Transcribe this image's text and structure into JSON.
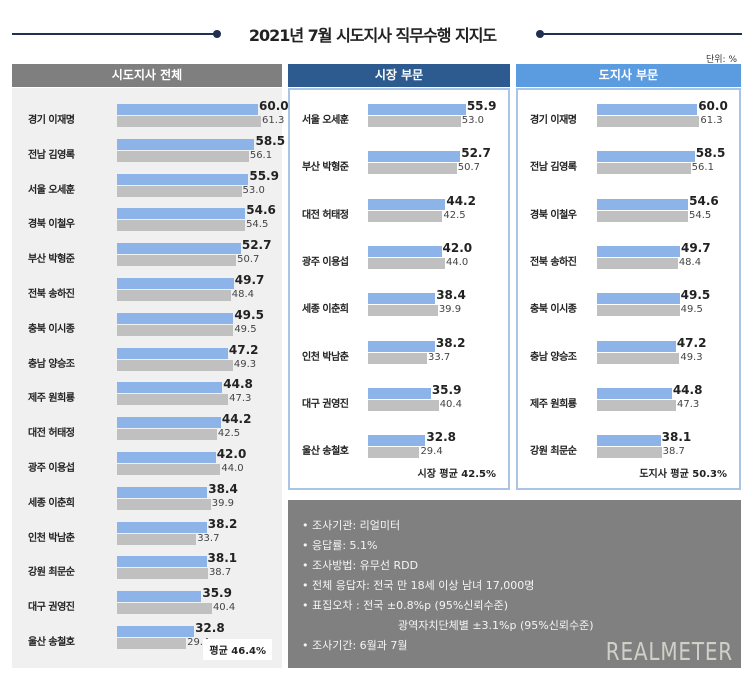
{
  "title": "2021년 7월 시도지사 직무수행 지지도",
  "unit": "단위: %",
  "colors": {
    "current": "#8db4e8",
    "previous": "#c0c0c0",
    "header_all": "#7f7f7f",
    "header_mayor": "#2e5b8f",
    "header_governor": "#5b9be0"
  },
  "chart_data": [
    {
      "type": "bar",
      "orientation": "horizontal",
      "title": "시도지사 전체",
      "categories": [
        "경기 이재명",
        "전남 김영록",
        "서울 오세훈",
        "경북 이철우",
        "부산 박형준",
        "전북 송하진",
        "충북 이시종",
        "충남 양승조",
        "제주 원희룡",
        "대전 허태정",
        "광주 이용섭",
        "세종 이춘희",
        "인천 박남춘",
        "강원 최문순",
        "대구 권영진",
        "울산 송철호"
      ],
      "series": [
        {
          "values": [
            60.0,
            58.5,
            55.9,
            54.6,
            52.7,
            49.7,
            49.5,
            47.2,
            44.8,
            44.2,
            42.0,
            38.4,
            38.2,
            38.1,
            35.9,
            32.8
          ]
        },
        {
          "values": [
            61.3,
            56.1,
            53.0,
            54.5,
            50.7,
            48.4,
            49.5,
            49.3,
            47.3,
            42.5,
            44.0,
            39.9,
            33.7,
            38.7,
            40.4,
            29.4
          ]
        }
      ],
      "average": "평균 46.4%",
      "grid": false
    },
    {
      "type": "bar",
      "orientation": "horizontal",
      "title": "시장 부문",
      "categories": [
        "서울 오세훈",
        "부산 박형준",
        "대전 허태정",
        "광주 이용섭",
        "세종 이춘희",
        "인천 박남춘",
        "대구 권영진",
        "울산 송철호"
      ],
      "series": [
        {
          "values": [
            55.9,
            52.7,
            44.2,
            42.0,
            38.4,
            38.2,
            35.9,
            32.8
          ]
        },
        {
          "values": [
            53.0,
            50.7,
            42.5,
            44.0,
            39.9,
            33.7,
            40.4,
            29.4
          ]
        }
      ],
      "average": "시장 평균 42.5%",
      "grid": false
    },
    {
      "type": "bar",
      "orientation": "horizontal",
      "title": "도지사 부문",
      "categories": [
        "경기 이재명",
        "전남 김영록",
        "경북 이철우",
        "전북 송하진",
        "충북 이시종",
        "충남 양승조",
        "제주 원희룡",
        "강원 최문순"
      ],
      "series": [
        {
          "values": [
            60.0,
            58.5,
            54.6,
            49.7,
            49.5,
            47.2,
            44.8,
            38.1
          ]
        },
        {
          "values": [
            61.3,
            56.1,
            54.5,
            48.4,
            49.5,
            49.3,
            47.3,
            38.7
          ]
        }
      ],
      "average": "도지사 평균 50.3%",
      "grid": false
    }
  ],
  "notes": [
    "• 조사기관: 리얼미터",
    "• 응답률: 5.1%",
    "• 조사방법: 유무선 RDD",
    "• 전체 응답자: 전국 만 18세 이상 남녀 17,000명",
    "• 표집오차 : 전국 ±0.8%p (95%신뢰수준)",
    "광역자치단체별 ±3.1%p (95%신뢰수준)",
    "• 조사기간: 6월과 7월"
  ],
  "logo": "REALMETER"
}
